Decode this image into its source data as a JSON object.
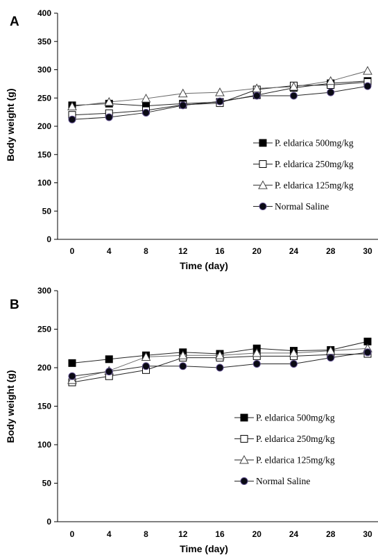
{
  "chart_data": [
    {
      "type": "line",
      "panel_label": "A",
      "xlabel": "Time (day)",
      "ylabel": "Body weight (g)",
      "categories": [
        "0",
        "4",
        "8",
        "12",
        "16",
        "20",
        "24",
        "28",
        "30"
      ],
      "ylim": [
        0,
        400
      ],
      "yticks": [
        "0",
        "50",
        "100",
        "150",
        "200",
        "250",
        "300",
        "350",
        "400"
      ],
      "grid": false,
      "legend_position": "right",
      "series": [
        {
          "name": "P. eldarica 500mg/kg",
          "marker": "square-filled",
          "values": [
            237,
            240,
            236,
            240,
            243,
            255,
            268,
            276,
            280
          ]
        },
        {
          "name": "P. eldarica 250mg/kg",
          "marker": "square-open",
          "values": [
            220,
            223,
            228,
            238,
            241,
            265,
            272,
            273,
            278
          ]
        },
        {
          "name": "P. eldarica 125mg/kg",
          "marker": "triangle-open",
          "values": [
            235,
            243,
            249,
            258,
            260,
            267,
            270,
            280,
            298
          ]
        },
        {
          "name": "Normal Saline",
          "marker": "circle-filled",
          "values": [
            212,
            216,
            224,
            237,
            244,
            254,
            254,
            260,
            271
          ]
        }
      ]
    },
    {
      "type": "line",
      "panel_label": "B",
      "xlabel": "Time (day)",
      "ylabel": "Body weight (g)",
      "categories": [
        "0",
        "4",
        "8",
        "12",
        "16",
        "20",
        "24",
        "28",
        "30"
      ],
      "ylim": [
        0,
        300
      ],
      "yticks": [
        "0",
        "50",
        "100",
        "150",
        "200",
        "250",
        "300"
      ],
      "grid": false,
      "legend_position": "right",
      "series": [
        {
          "name": "P. eldarica 500mg/kg",
          "marker": "square-filled",
          "values": [
            206,
            211,
            216,
            220,
            218,
            225,
            222,
            223,
            234
          ]
        },
        {
          "name": "P. eldarica 250mg/kg",
          "marker": "square-open",
          "values": [
            181,
            189,
            197,
            213,
            213,
            215,
            215,
            217,
            218
          ]
        },
        {
          "name": "P. eldarica 125mg/kg",
          "marker": "triangle-open",
          "values": [
            184,
            196,
            214,
            216,
            216,
            219,
            219,
            222,
            225
          ]
        },
        {
          "name": "Normal Saline",
          "marker": "circle-filled",
          "values": [
            189,
            195,
            202,
            202,
            200,
            205,
            205,
            213,
            220
          ]
        }
      ]
    }
  ]
}
